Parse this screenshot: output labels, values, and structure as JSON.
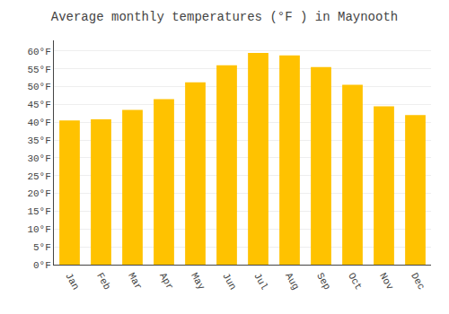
{
  "chart_data": {
    "type": "bar",
    "title": "Average monthly temperatures (°F ) in Maynooth",
    "categories": [
      "Jan",
      "Feb",
      "Mar",
      "Apr",
      "May",
      "Jun",
      "Jul",
      "Aug",
      "Sep",
      "Oct",
      "Nov",
      "Dec"
    ],
    "values": [
      40.5,
      40.8,
      43.5,
      46.5,
      51.2,
      56.0,
      59.5,
      58.8,
      55.5,
      50.5,
      44.5,
      42.0
    ],
    "color": "#FFC200",
    "ylim": [
      0,
      63
    ],
    "yticks": [
      {
        "value": 0,
        "label": "0°F"
      },
      {
        "value": 5,
        "label": "5°F"
      },
      {
        "value": 10,
        "label": "10°F"
      },
      {
        "value": 15,
        "label": "15°F"
      },
      {
        "value": 20,
        "label": "20°F"
      },
      {
        "value": 25,
        "label": "25°F"
      },
      {
        "value": 30,
        "label": "30°F"
      },
      {
        "value": 35,
        "label": "35°F"
      },
      {
        "value": 40,
        "label": "40°F"
      },
      {
        "value": 45,
        "label": "45°F"
      },
      {
        "value": 50,
        "label": "50°F"
      },
      {
        "value": 55,
        "label": "55°F"
      },
      {
        "value": 60,
        "label": "60°F"
      }
    ],
    "grid": true
  }
}
